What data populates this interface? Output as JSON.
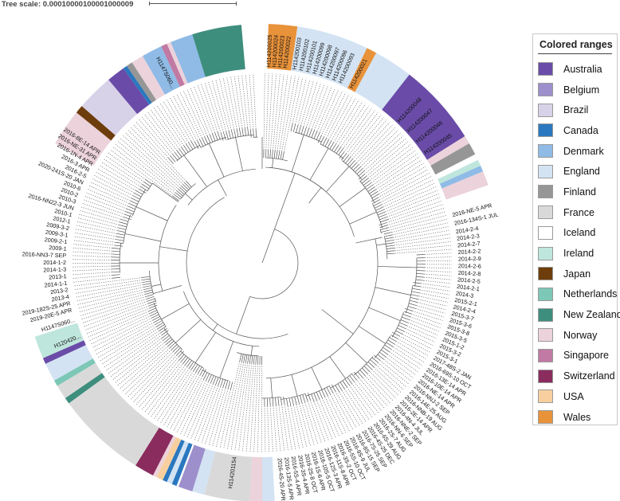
{
  "scale": {
    "label": "Tree scale: 0.00010000100001000009"
  },
  "legend": {
    "title": "Colored ranges",
    "items": [
      {
        "label": "Australia",
        "color": "#6a4ca8"
      },
      {
        "label": "Belgium",
        "color": "#9d8fcc"
      },
      {
        "label": "Brazil",
        "color": "#d8d2e8"
      },
      {
        "label": "Canada",
        "color": "#2a78bf"
      },
      {
        "label": "Denmark",
        "color": "#8fbbe6"
      },
      {
        "label": "England",
        "color": "#d3e3f3"
      },
      {
        "label": "Finland",
        "color": "#969696"
      },
      {
        "label": "France",
        "color": "#d9d9d9"
      },
      {
        "label": "Iceland",
        "color": "#ffffff"
      },
      {
        "label": "Ireland",
        "color": "#bfe6dc"
      },
      {
        "label": "Japan",
        "color": "#6e3d0c"
      },
      {
        "label": "Netherlands",
        "color": "#7cc7b6"
      },
      {
        "label": "New Zealand",
        "color": "#3e8e7e"
      },
      {
        "label": "Norway",
        "color": "#ecd2db"
      },
      {
        "label": "Singapore",
        "color": "#c07aa3"
      },
      {
        "label": "Switzerland",
        "color": "#8a2c5e"
      },
      {
        "label": "USA",
        "color": "#f7cf9f"
      },
      {
        "label": "Wales",
        "color": "#e8923a"
      }
    ]
  },
  "ranges": [
    {
      "country": "Wales",
      "from": 1.5,
      "to": 8.5
    },
    {
      "country": "England",
      "from": 8.5,
      "to": 26
    },
    {
      "country": "Wales",
      "from": 26,
      "to": 28.5
    },
    {
      "country": "England",
      "from": 28.5,
      "to": 38
    },
    {
      "country": "Australia",
      "from": 38,
      "to": 58
    },
    {
      "country": "Norway",
      "from": 58,
      "to": 60
    },
    {
      "country": "Finland",
      "from": 60,
      "to": 63
    },
    {
      "country": "Iceland",
      "from": 63,
      "to": 64.5
    },
    {
      "country": "Ireland",
      "from": 64.5,
      "to": 66
    },
    {
      "country": "Denmark",
      "from": 66,
      "to": 67.5
    },
    {
      "country": "Norway",
      "from": 67.5,
      "to": 71
    },
    {
      "country": "England",
      "from": 177,
      "to": 180
    },
    {
      "country": "Norway",
      "from": 180,
      "to": 183
    },
    {
      "country": "France",
      "from": 183,
      "to": 194
    },
    {
      "country": "England",
      "from": 194,
      "to": 197
    },
    {
      "country": "Belgium",
      "from": 197,
      "to": 200.5
    },
    {
      "country": "Canada",
      "from": 201,
      "to": 202.2
    },
    {
      "country": "England",
      "from": 202.2,
      "to": 203.5
    },
    {
      "country": "Canada",
      "from": 203.5,
      "to": 204.6
    },
    {
      "country": "USA",
      "from": 204.6,
      "to": 206.3
    },
    {
      "country": "Norway",
      "from": 206.3,
      "to": 207.2
    },
    {
      "country": "Switzerland",
      "from": 207.2,
      "to": 212
    },
    {
      "country": "France",
      "from": 212,
      "to": 234
    },
    {
      "country": "New Zealand",
      "from": 234,
      "to": 235.5
    },
    {
      "country": "France",
      "from": 235.5,
      "to": 239
    },
    {
      "country": "Netherlands",
      "from": 239,
      "to": 240.5
    },
    {
      "country": "England",
      "from": 240.5,
      "to": 245
    },
    {
      "country": "Australia",
      "from": 245,
      "to": 246.5
    },
    {
      "country": "Ireland",
      "from": 246.5,
      "to": 252
    },
    {
      "country": "Norway",
      "from": 300,
      "to": 309
    },
    {
      "country": "Japan",
      "from": 309,
      "to": 311
    },
    {
      "country": "Brazil",
      "from": 311,
      "to": 320
    },
    {
      "country": "Australia",
      "from": 320,
      "to": 324.5
    },
    {
      "country": "Canada",
      "from": 324.5,
      "to": 325.5
    },
    {
      "country": "Finland",
      "from": 325.5,
      "to": 327
    },
    {
      "country": "Norway",
      "from": 327,
      "to": 330
    },
    {
      "country": "Denmark",
      "from": 330,
      "to": 335
    },
    {
      "country": "Singapore",
      "from": 335,
      "to": 336.5
    },
    {
      "country": "Norway",
      "from": 336.5,
      "to": 337.5
    },
    {
      "country": "Denmark",
      "from": 337.5,
      "to": 343
    },
    {
      "country": "New Zealand",
      "from": 343,
      "to": 355
    },
    {
      "country": "Norway",
      "from": 336.5,
      "to": 337.5
    }
  ],
  "leaves": [
    {
      "angle": 76,
      "label": "2016-NE-5 APR"
    },
    {
      "angle": 78.5,
      "label": "2016-134S-1 JUL"
    },
    {
      "angle": 81,
      "label": "2014-2-4"
    },
    {
      "angle": 83,
      "label": "2014-2-3"
    },
    {
      "angle": 85,
      "label": "2014-2-7"
    },
    {
      "angle": 87,
      "label": "2014-2-2"
    },
    {
      "angle": 89,
      "label": "2014-2-9"
    },
    {
      "angle": 91,
      "label": "2014-2-6"
    },
    {
      "angle": 93,
      "label": "2014-2-8"
    },
    {
      "angle": 95,
      "label": "2014-2-5"
    },
    {
      "angle": 97,
      "label": "2014-2-1"
    },
    {
      "angle": 99,
      "label": "2014-3"
    },
    {
      "angle": 101,
      "label": "2015-2-1"
    },
    {
      "angle": 103,
      "label": "2014-2-4"
    },
    {
      "angle": 105,
      "label": "2015-3-7"
    },
    {
      "angle": 107,
      "label": "2015-3-6"
    },
    {
      "angle": 109,
      "label": "2015-3-8"
    },
    {
      "angle": 111,
      "label": "2015-3-5"
    },
    {
      "angle": 113,
      "label": "2015-1-2"
    },
    {
      "angle": 115,
      "label": "2015-3-2"
    },
    {
      "angle": 117,
      "label": "2015-3-1"
    },
    {
      "angle": 119,
      "label": "2017-48S-2 JAN"
    },
    {
      "angle": 121,
      "label": "2016-69S-10 OCT"
    },
    {
      "angle": 123,
      "label": "2016-13E-14 APR"
    },
    {
      "angle": 125,
      "label": "2016-10E-14 APR"
    },
    {
      "angle": 127,
      "label": "2016-NE-14 APR"
    },
    {
      "angle": 129,
      "label": "2016-NNJ-2 SEP"
    },
    {
      "angle": 131,
      "label": "2016-14E-25 AUG"
    },
    {
      "angle": 133,
      "label": "2016-NNB-19 AUG"
    },
    {
      "angle": 135,
      "label": "2016-2E-14 APR"
    },
    {
      "angle": 137,
      "label": "2016-4N-4 JUL"
    },
    {
      "angle": 139,
      "label": "2016-NNE-2 SEP"
    },
    {
      "angle": 141,
      "label": "2016-NN-6 SEP"
    },
    {
      "angle": 143,
      "label": "2016-2S-7 AUG"
    },
    {
      "angle": 145,
      "label": "2016-6S-29 AUG"
    },
    {
      "angle": 147,
      "label": "2016-4S-25 DEC"
    },
    {
      "angle": 149,
      "label": "2016-7S-25 SEP"
    },
    {
      "angle": 151,
      "label": "2016-8S-15 SEP"
    },
    {
      "angle": 153,
      "label": "2016-9S-9 JUL"
    },
    {
      "angle": 155,
      "label": "2016-5S-10 OCT"
    },
    {
      "angle": 157,
      "label": "2016-3S-2 OCT"
    },
    {
      "angle": 159,
      "label": "2016-11S-8 APR"
    },
    {
      "angle": 161,
      "label": "2016-12S-3 APR"
    },
    {
      "angle": 163,
      "label": "2016-10S-5 OCT"
    },
    {
      "angle": 165,
      "label": "2016-1S-6 APR"
    },
    {
      "angle": 167,
      "label": "2016-2S-8 OCT"
    },
    {
      "angle": 169,
      "label": "2016-3S-4 APR"
    },
    {
      "angle": 171,
      "label": "2016-5S-4 APR"
    },
    {
      "angle": 173,
      "label": "2016-13S-5 APR"
    },
    {
      "angle": 175,
      "label": "2016-4S-20 APR"
    },
    {
      "angle": 188,
      "label": "H114201154"
    },
    {
      "angle": 248,
      "label": "H120420..."
    },
    {
      "angle": 253,
      "label": "H1147S060..."
    },
    {
      "angle": 256,
      "label": "2019-20E-5 APR"
    },
    {
      "angle": 258,
      "label": "2019-182S-25 APR"
    },
    {
      "angle": 260,
      "label": "2013-4"
    },
    {
      "angle": 262,
      "label": "2013-2"
    },
    {
      "angle": 264,
      "label": "2014-1-1"
    },
    {
      "angle": 266,
      "label": "2013-1"
    },
    {
      "angle": 268,
      "label": "2014-1-3"
    },
    {
      "angle": 270,
      "label": "2014-1-2"
    },
    {
      "angle": 272,
      "label": "2016-NN3-7 SEP"
    },
    {
      "angle": 274,
      "label": "2009-1"
    },
    {
      "angle": 276,
      "label": "2009-2-1"
    },
    {
      "angle": 278,
      "label": "2009-3-1"
    },
    {
      "angle": 280,
      "label": "2009-3-2"
    },
    {
      "angle": 282,
      "label": "2012-1"
    },
    {
      "angle": 284,
      "label": "2010-1"
    },
    {
      "angle": 286,
      "label": "2016-NN22-3 JUN"
    },
    {
      "angle": 288,
      "label": "2010-3"
    },
    {
      "angle": 290,
      "label": "2010-2"
    },
    {
      "angle": 292,
      "label": "2010-6"
    },
    {
      "angle": 294,
      "label": "2020-241S-20 JAN"
    },
    {
      "angle": 296,
      "label": "2016-2-5"
    },
    {
      "angle": 298,
      "label": "2016-3 APR"
    },
    {
      "angle": 300,
      "label": "2016-1N-4 APR"
    },
    {
      "angle": 302,
      "label": "2016-NE-31 APR"
    },
    {
      "angle": 304,
      "label": "2016-8E-14 APR"
    },
    {
      "angle": 333,
      "label": "H1147S060..."
    },
    {
      "angle": 2,
      "label": "H114200025"
    },
    {
      "angle": 3.6,
      "label": "H114200024"
    },
    {
      "angle": 5.2,
      "label": "H114200023"
    },
    {
      "angle": 6.8,
      "label": "H114200022"
    },
    {
      "angle": 9.5,
      "label": "H114200103"
    },
    {
      "angle": 11.5,
      "label": "H114200102"
    },
    {
      "angle": 13.5,
      "label": "H114200101"
    },
    {
      "angle": 15.5,
      "label": "H114200099"
    },
    {
      "angle": 17.5,
      "label": "H114200098"
    },
    {
      "angle": 19.5,
      "label": "H114200097"
    },
    {
      "angle": 21.5,
      "label": "H114200096"
    },
    {
      "angle": 23.5,
      "label": "H114200093"
    },
    {
      "angle": 27,
      "label": "H114200021"
    },
    {
      "angle": 44,
      "label": "H114200048"
    },
    {
      "angle": 48,
      "label": "H114200047"
    },
    {
      "angle": 52,
      "label": "H114200046"
    },
    {
      "angle": 56,
      "label": "H114200045"
    }
  ]
}
